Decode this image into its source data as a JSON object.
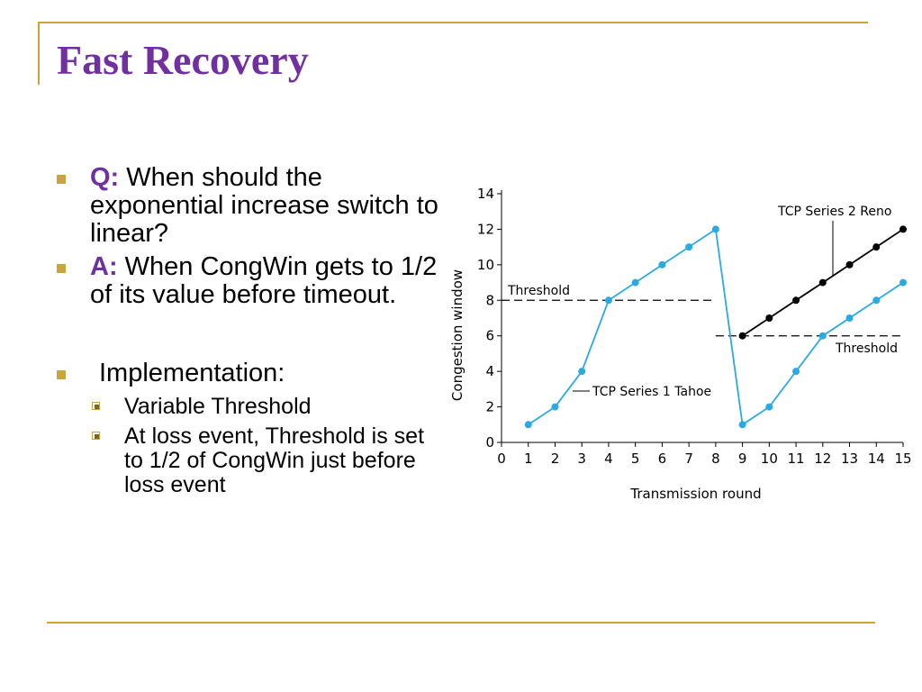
{
  "slide": {
    "title": "Fast Recovery",
    "bullets": [
      {
        "prefix": "Q:",
        "text": " When should the exponential increase switch to linear?"
      },
      {
        "prefix": "A:",
        "text": " When CongWin gets to 1/2 of its value before timeout."
      },
      {
        "prefix": "",
        "text": "Implementation:"
      }
    ],
    "sub_bullets": [
      "Variable Threshold",
      "At loss event, Threshold is set to 1/2 of CongWin just before loss event"
    ]
  },
  "colors": {
    "title": "#7030a0",
    "accent": "#c9a43a",
    "tahoe": "#29abe2",
    "reno": "#000000"
  },
  "chart_data": {
    "type": "line",
    "xlabel": "Transmission round",
    "ylabel": "Congestion window",
    "xlim": [
      0,
      15
    ],
    "ylim": [
      0,
      14
    ],
    "x_ticks": [
      "0",
      "1",
      "2",
      "3",
      "4",
      "5",
      "6",
      "7",
      "8",
      "9",
      "10",
      "11",
      "12",
      "13",
      "14",
      "15"
    ],
    "y_ticks": [
      "0",
      "2",
      "4",
      "6",
      "8",
      "10",
      "12",
      "14"
    ],
    "series": [
      {
        "name": "TCP Series 1 Tahoe",
        "color": "#29abe2",
        "x": [
          1,
          2,
          3,
          4,
          5,
          6,
          7,
          8,
          9,
          10,
          11,
          12,
          13,
          14,
          15
        ],
        "y": [
          1,
          2,
          4,
          8,
          9,
          10,
          11,
          12,
          1,
          2,
          4,
          6,
          7,
          8,
          9
        ]
      },
      {
        "name": "TCP Series 2 Reno",
        "color": "#000000",
        "x": [
          9,
          10,
          11,
          12,
          13,
          14,
          15
        ],
        "y": [
          6,
          7,
          8,
          9,
          10,
          11,
          12
        ]
      }
    ],
    "thresholds": [
      {
        "label": "Threshold",
        "y": 8,
        "x_start": 0,
        "x_end": 8
      },
      {
        "label": "Threshold",
        "y": 6,
        "x_start": 8,
        "x_end": 15
      }
    ]
  }
}
